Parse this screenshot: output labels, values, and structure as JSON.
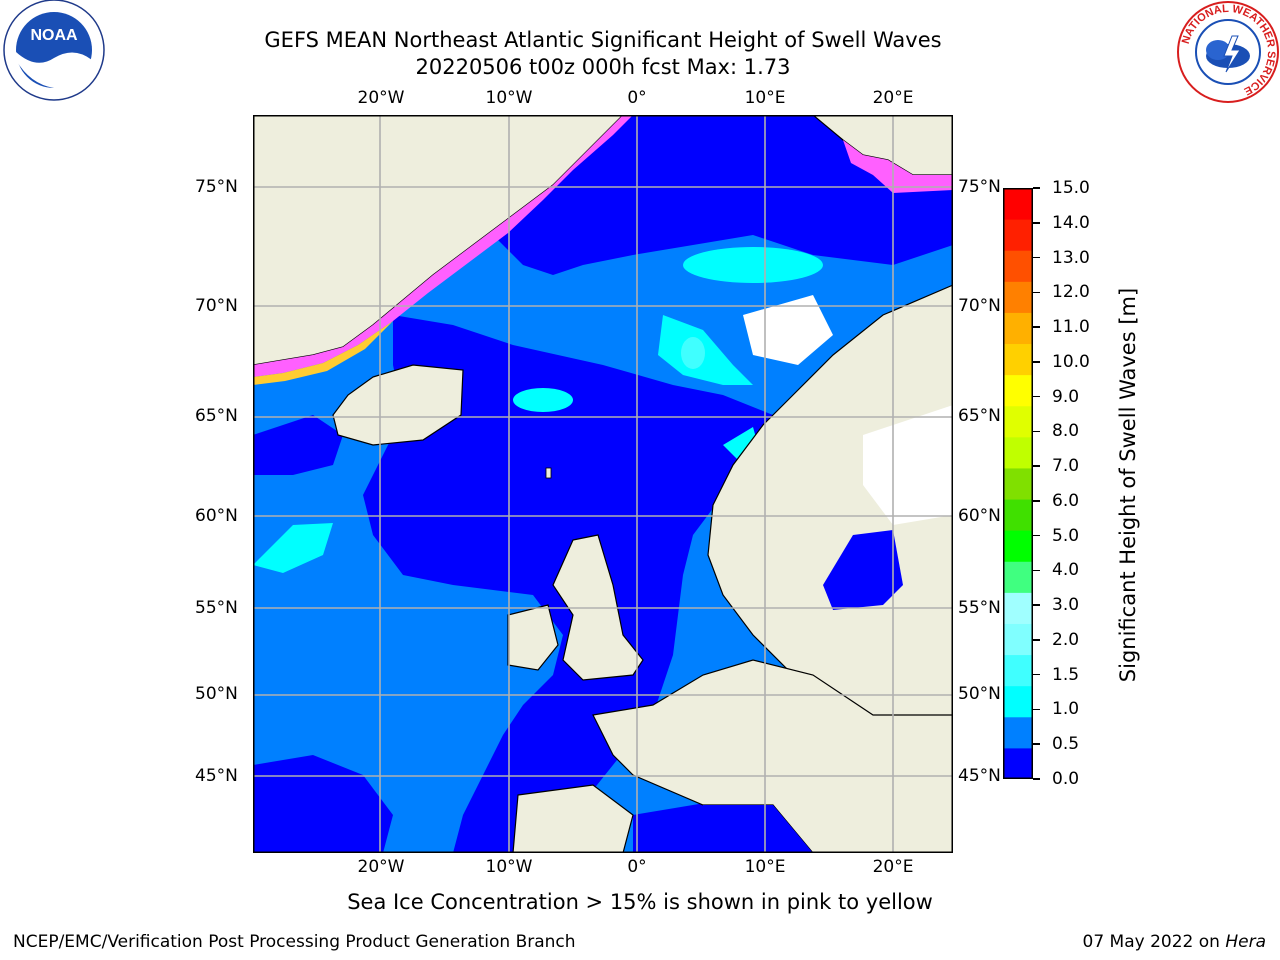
{
  "title": {
    "line1": "GEFS MEAN Northeast Atlantic Significant Height of Swell Waves",
    "line2": "20220506 t00z 000h fcst   Max: 1.73"
  },
  "map": {
    "lon_ticks": [
      "20°W",
      "10°W",
      "0°",
      "10°E",
      "20°E"
    ],
    "lat_ticks": [
      "75°N",
      "70°N",
      "65°N",
      "60°N",
      "55°N",
      "50°N",
      "45°N"
    ],
    "ocean_class_colors": {
      "0.0-0.5": "#0000ff",
      "0.5-1.0": "#0080ff",
      "1.0-1.5": "#00ffff",
      "1.5-2.0": "#40ffff",
      "ice": "#ff40ff",
      "land": "#eeeedd",
      "no_data": "#ffffff"
    }
  },
  "colorbar": {
    "label": "Significant Height of Swell Waves [m]",
    "ticks": [
      "15.0",
      "14.0",
      "13.0",
      "12.0",
      "11.0",
      "10.0",
      "9.0",
      "8.0",
      "7.0",
      "6.0",
      "5.0",
      "4.0",
      "3.0",
      "2.0",
      "1.5",
      "1.0",
      "0.5",
      "0.0"
    ],
    "colors_bottom_to_top": [
      "#0000ff",
      "#0080ff",
      "#00ffff",
      "#40ffff",
      "#80ffff",
      "#a0ffff",
      "#40ff80",
      "#00ff00",
      "#40e000",
      "#80e000",
      "#c0ff00",
      "#e0ff00",
      "#ffff00",
      "#ffd000",
      "#ffb000",
      "#ff8000",
      "#ff5000",
      "#ff2000",
      "#ff0000"
    ]
  },
  "note": "Sea Ice Concentration > 15% is shown in pink to yellow",
  "footer": {
    "left": "NCEP/EMC/Verification Post Processing Product Generation Branch",
    "date": "07 May 2022 on",
    "machine": "Hera"
  },
  "logos": {
    "noaa_text": "NOAA",
    "nws_ring_text": "NATIONAL WEATHER SERVICE"
  }
}
